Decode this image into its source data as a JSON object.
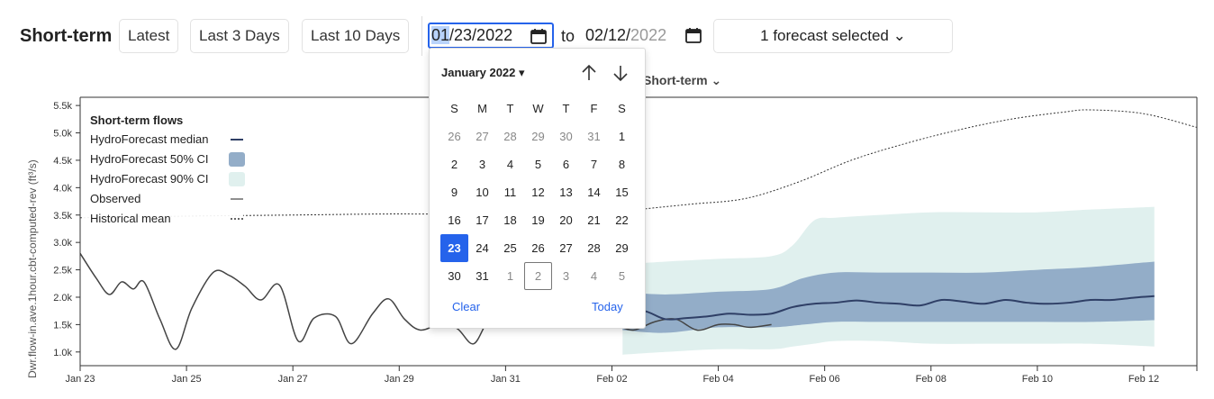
{
  "header": {
    "title": "Short-term",
    "buttons": [
      "Latest",
      "Last 3 Days",
      "Last 10 Days"
    ],
    "start_date": {
      "month": "01",
      "rest": "/23/2022"
    },
    "to_label": "to",
    "end_date": {
      "main": "02/12/",
      "year": "2022"
    },
    "forecast_select": "1 forecast selected ⌄"
  },
  "subselect": "Short-term ⌄",
  "calendar": {
    "month_label": "January 2022 ▾",
    "weekdays": [
      "S",
      "M",
      "T",
      "W",
      "T",
      "F",
      "S"
    ],
    "weeks": [
      [
        {
          "d": "26",
          "m": true
        },
        {
          "d": "27",
          "m": true
        },
        {
          "d": "28",
          "m": true
        },
        {
          "d": "29",
          "m": true
        },
        {
          "d": "30",
          "m": true
        },
        {
          "d": "31",
          "m": true
        },
        {
          "d": "1"
        }
      ],
      [
        {
          "d": "2"
        },
        {
          "d": "3"
        },
        {
          "d": "4"
        },
        {
          "d": "5"
        },
        {
          "d": "6"
        },
        {
          "d": "7"
        },
        {
          "d": "8"
        }
      ],
      [
        {
          "d": "9"
        },
        {
          "d": "10"
        },
        {
          "d": "11"
        },
        {
          "d": "12"
        },
        {
          "d": "13"
        },
        {
          "d": "14"
        },
        {
          "d": "15"
        }
      ],
      [
        {
          "d": "16"
        },
        {
          "d": "17"
        },
        {
          "d": "18"
        },
        {
          "d": "19"
        },
        {
          "d": "20"
        },
        {
          "d": "21"
        },
        {
          "d": "22"
        }
      ],
      [
        {
          "d": "23",
          "s": true
        },
        {
          "d": "24"
        },
        {
          "d": "25"
        },
        {
          "d": "26"
        },
        {
          "d": "27"
        },
        {
          "d": "28"
        },
        {
          "d": "29"
        }
      ],
      [
        {
          "d": "30"
        },
        {
          "d": "31"
        },
        {
          "d": "1",
          "m": true
        },
        {
          "d": "2",
          "m": true,
          "o": true
        },
        {
          "d": "3",
          "m": true
        },
        {
          "d": "4",
          "m": true
        },
        {
          "d": "5",
          "m": true
        }
      ]
    ],
    "clear_label": "Clear",
    "today_label": "Today"
  },
  "legend": {
    "title": "Short-term flows",
    "items": [
      "HydroForecast median",
      "HydroForecast 50% CI",
      "HydroForecast 90% CI",
      "Observed",
      "Historical mean"
    ]
  },
  "colors": {
    "median": "#2f3f66",
    "ci50": "#93adc8",
    "ci90": "#e0f0ee",
    "accent": "#2563eb"
  },
  "chart_data": {
    "type": "line",
    "ylabel": "Dwr.flow-in.ave.1hour.cbt-computed-rev (ft³/s)",
    "ylim": [
      750,
      5650
    ],
    "y_ticks": [
      1000,
      1500,
      2000,
      2500,
      3000,
      3500,
      4000,
      4500,
      5000,
      5500
    ],
    "y_tick_labels": [
      "1.0k",
      "1.5k",
      "2.0k",
      "2.5k",
      "3.0k",
      "3.5k",
      "4.0k",
      "4.5k",
      "5.0k",
      "5.5k"
    ],
    "xlim": [
      0,
      21
    ],
    "x_ticks": [
      0,
      2,
      4,
      6,
      8,
      10,
      12,
      14,
      16,
      18,
      20
    ],
    "x_tick_labels": [
      "Jan 23",
      "Jan 25",
      "Jan 27",
      "Jan 29",
      "Jan 31",
      "Feb 02",
      "Feb 04",
      "Feb 06",
      "Feb 08",
      "Feb 10",
      "Feb 12"
    ],
    "series": [
      {
        "name": "Observed",
        "x": [
          0,
          0.3,
          0.55,
          0.78,
          1.0,
          1.2,
          1.5,
          1.8,
          2.1,
          2.5,
          2.8,
          3.1,
          3.4,
          3.75,
          4.1,
          4.4,
          4.8,
          5.1,
          5.5,
          5.8,
          6.1,
          6.4,
          6.8,
          7.1,
          7.4,
          7.7,
          8.0,
          8.3,
          8.6,
          9.0,
          9.3,
          9.6,
          10.0,
          10.4,
          10.8,
          11.2,
          11.6,
          12.0,
          12.3,
          12.6,
          13.0
        ],
        "y": [
          2800,
          2350,
          2050,
          2280,
          2150,
          2280,
          1600,
          1050,
          1800,
          2450,
          2400,
          2200,
          1950,
          2220,
          1200,
          1620,
          1650,
          1150,
          1700,
          1970,
          1600,
          1400,
          1520,
          1420,
          1150,
          1600,
          1500,
          1750,
          1650,
          1500,
          1600,
          1450,
          1500,
          1400,
          1550,
          1600,
          1400,
          1500,
          1500,
          1450,
          1500
        ]
      },
      {
        "name": "Historical mean",
        "x": [
          0,
          2,
          4,
          6,
          8,
          9.5,
          10.5,
          11.5,
          12.5,
          13.5,
          14.5,
          15.5,
          16.5,
          17.5,
          18.5,
          19,
          20,
          21
        ],
        "y": [
          3450,
          3480,
          3500,
          3520,
          3500,
          3480,
          3600,
          3700,
          3800,
          4100,
          4500,
          4800,
          5050,
          5250,
          5380,
          5420,
          5350,
          5100
        ]
      },
      {
        "name": "HydroForecast median",
        "x": [
          10.2,
          10.6,
          11.0,
          11.4,
          11.8,
          12.2,
          12.6,
          13.0,
          13.4,
          13.8,
          14.2,
          14.6,
          15.0,
          15.4,
          15.8,
          16.2,
          16.6,
          17.0,
          17.4,
          17.8,
          18.2,
          18.6,
          19.0,
          19.4,
          19.8,
          20.2
        ],
        "y": [
          1700,
          1750,
          1600,
          1620,
          1650,
          1700,
          1680,
          1700,
          1820,
          1880,
          1900,
          1940,
          1900,
          1880,
          1850,
          1950,
          1920,
          1880,
          1950,
          1900,
          1880,
          1900,
          1950,
          1950,
          1990,
          2020
        ]
      },
      {
        "name": "HydroForecast 50% CI",
        "x": [
          10.2,
          11.0,
          12.0,
          13.0,
          13.6,
          14.2,
          15.0,
          16.0,
          17.0,
          18.0,
          19.0,
          20.2
        ],
        "lower": [
          1400,
          1350,
          1450,
          1450,
          1500,
          1550,
          1550,
          1550,
          1550,
          1550,
          1550,
          1580
        ],
        "upper": [
          2100,
          2050,
          2100,
          2150,
          2350,
          2450,
          2450,
          2450,
          2450,
          2500,
          2550,
          2650
        ]
      },
      {
        "name": "HydroForecast 90% CI",
        "x": [
          10.2,
          11.0,
          12.0,
          13.0,
          13.4,
          13.8,
          14.2,
          15.0,
          16.0,
          17.0,
          18.0,
          19.0,
          20.2
        ],
        "lower": [
          950,
          1000,
          1050,
          1050,
          1100,
          1150,
          1200,
          1200,
          1150,
          1150,
          1150,
          1150,
          1100
        ],
        "upper": [
          2600,
          2650,
          2700,
          2750,
          2950,
          3400,
          3450,
          3500,
          3550,
          3550,
          3550,
          3600,
          3650
        ]
      }
    ]
  }
}
